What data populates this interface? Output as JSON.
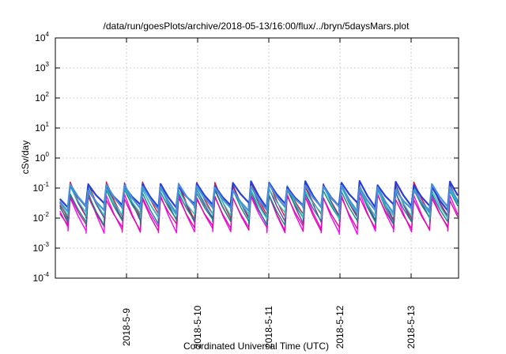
{
  "chart_data": {
    "type": "line",
    "title": "/data/run/goesPlots/archive/2018-05-13/16:00/flux/../bryn/5daysMars.plot",
    "xlabel": "Coordinated Universal Time (UTC)",
    "ylabel": "cSv/day",
    "yscale": "log",
    "ylim": [
      0.0001,
      10000
    ],
    "y_ticks": [
      {
        "value": 0.0001,
        "label": "10",
        "exp": "-4"
      },
      {
        "value": 0.001,
        "label": "10",
        "exp": "-3"
      },
      {
        "value": 0.01,
        "label": "10",
        "exp": "-2"
      },
      {
        "value": 0.1,
        "label": "10",
        "exp": "-1"
      },
      {
        "value": 1,
        "label": "10",
        "exp": "0"
      },
      {
        "value": 10,
        "label": "10",
        "exp": "1"
      },
      {
        "value": 100,
        "label": "10",
        "exp": "2"
      },
      {
        "value": 1000,
        "label": "10",
        "exp": "3"
      },
      {
        "value": 10000,
        "label": "10",
        "exp": "4"
      }
    ],
    "xlim": [
      "2018-05-08 00:00",
      "2018-05-13 16:00"
    ],
    "x_ticks": [
      {
        "value": "2018-05-09 00:00",
        "label": "2018-5-9"
      },
      {
        "value": "2018-05-10 00:00",
        "label": "2018-5-10"
      },
      {
        "value": "2018-05-11 00:00",
        "label": "2018-5-11"
      },
      {
        "value": "2018-05-12 00:00",
        "label": "2018-5-12"
      },
      {
        "value": "2018-05-13 00:00",
        "label": "2018-5-13"
      }
    ],
    "grid": true,
    "legend": "none",
    "pattern": {
      "description": "sawtooth dose-rate traces, peaks roughly every 6 hours",
      "period_hours": 6.1,
      "start": "2018-05-08 00:00",
      "end": "2018-05-13 16:00"
    },
    "series": [
      {
        "color": "#e8112d",
        "peak": 0.13,
        "trough": 0.012
      },
      {
        "color": "#7d2ea0",
        "peak": 0.12,
        "trough": 0.009
      },
      {
        "color": "#ff00ff",
        "peak": 0.06,
        "trough": 0.004
      },
      {
        "color": "#d8109c",
        "peak": 0.05,
        "trough": 0.005
      },
      {
        "color": "#0a8a82",
        "peak": 0.075,
        "trough": 0.008
      },
      {
        "color": "#1fc7c0",
        "peak": 0.1,
        "trough": 0.012
      },
      {
        "color": "#2a3dd6",
        "peak": 0.14,
        "trough": 0.025
      },
      {
        "color": "#4a90d9",
        "peak": 0.11,
        "trough": 0.02
      }
    ]
  }
}
